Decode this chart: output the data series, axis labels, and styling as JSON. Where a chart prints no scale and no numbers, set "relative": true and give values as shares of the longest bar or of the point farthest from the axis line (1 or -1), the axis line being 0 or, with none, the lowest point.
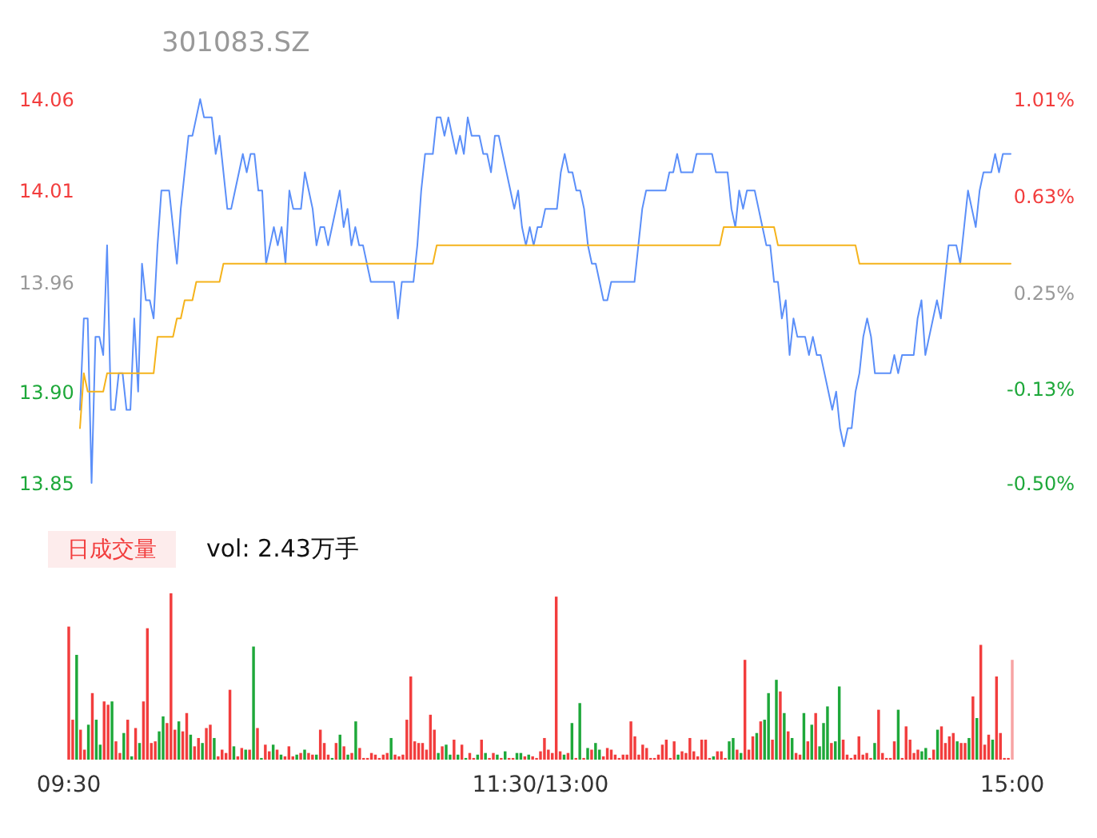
{
  "chart_data": [
    {
      "type": "line",
      "title": "301083.SZ",
      "ylim": [
        13.85,
        14.06
      ],
      "yticks": [
        13.85,
        {
          "value": 13.9,
          "label": "13.90"
        },
        13.96,
        14.01,
        14.06
      ],
      "y2lim": [
        -0.5,
        1.01
      ],
      "y2ticks": [
        {
          "value": -0.5,
          "label": "-0.50%"
        },
        {
          "value": -0.13,
          "label": "-0.13%"
        },
        {
          "value": 0.25,
          "label": "0.25%"
        },
        {
          "value": 0.63,
          "label": "0.63%"
        },
        {
          "value": 1.01,
          "label": "1.01%"
        }
      ],
      "tick_labels": "y",
      "marker": "none",
      "line_style": "solid",
      "categories": [
        null,
        null,
        null,
        null,
        null,
        null,
        null,
        null,
        null,
        null,
        null,
        null,
        null,
        null,
        null,
        null,
        null,
        null,
        null,
        null,
        null,
        null,
        null,
        null,
        null,
        null,
        null,
        null,
        null,
        null,
        null,
        null,
        null,
        null,
        null,
        null,
        null,
        null,
        null,
        null,
        null,
        null,
        null,
        null,
        null,
        null,
        null,
        null,
        null,
        null,
        null,
        null,
        null,
        null,
        null,
        null,
        null,
        null,
        null,
        null,
        null,
        null,
        null,
        null,
        null,
        null,
        null,
        null,
        null,
        null,
        null,
        null,
        null,
        null,
        null,
        null,
        null,
        null,
        null,
        null,
        null,
        null,
        null,
        null,
        null,
        null,
        null,
        null,
        null,
        null,
        null,
        null,
        null,
        null,
        null,
        null,
        null,
        null,
        null,
        null,
        null,
        null,
        null,
        null,
        null,
        null,
        null,
        null,
        null,
        null,
        null,
        null,
        null,
        null,
        null,
        null,
        null,
        null,
        null,
        null,
        null,
        null,
        null,
        null,
        null,
        null,
        null,
        null,
        null,
        null,
        null,
        null,
        null,
        null,
        null,
        null,
        null,
        null,
        null,
        null,
        null,
        null,
        null,
        null,
        null,
        null,
        null,
        null,
        null,
        null,
        null,
        null,
        null,
        null,
        null,
        null,
        null,
        null,
        null,
        null,
        null,
        null,
        null,
        null,
        null,
        null,
        null,
        null,
        null,
        null,
        null,
        null,
        null,
        null,
        null,
        null,
        null,
        null,
        null,
        null,
        null,
        null,
        null,
        null,
        null,
        null,
        null,
        null,
        null,
        null,
        null,
        null,
        null,
        null,
        null,
        null,
        null,
        null,
        null,
        null,
        null,
        null,
        null,
        null,
        null,
        null,
        null,
        null,
        null,
        null,
        null,
        null,
        null,
        null,
        null,
        null,
        null,
        null,
        null,
        null,
        null,
        null,
        null,
        null,
        null,
        null,
        null,
        null,
        null,
        null,
        null,
        null,
        null,
        null,
        null,
        null,
        null,
        null,
        null,
        null,
        null
      ],
      "series": [
        {
          "type": "line",
          "color": "#5b8ff9",
          "values": [
            13.89,
            13.94,
            13.94,
            13.85,
            13.93,
            13.93,
            13.92,
            13.98,
            13.89,
            13.89,
            13.91,
            13.91,
            13.89,
            13.89,
            13.94,
            13.9,
            13.97,
            13.95,
            13.95,
            13.94,
            13.98,
            14.01,
            14.01,
            14.01,
            13.99,
            13.97,
            14.0,
            14.02,
            14.04,
            14.04,
            14.05,
            14.06,
            14.05,
            14.05,
            14.05,
            14.03,
            14.04,
            14.02,
            14.0,
            14.0,
            14.01,
            14.02,
            14.03,
            14.02,
            14.03,
            14.03,
            14.01,
            14.01,
            13.97,
            13.98,
            13.99,
            13.98,
            13.99,
            13.97,
            14.01,
            14.0,
            14.0,
            14.0,
            14.02,
            14.01,
            14.0,
            13.98,
            13.99,
            13.99,
            13.98,
            13.99,
            14.0,
            14.01,
            13.99,
            14.0,
            13.98,
            13.99,
            13.98,
            13.98,
            13.97,
            13.96,
            13.96,
            13.96,
            13.96,
            13.96,
            13.96,
            13.96,
            13.94,
            13.96,
            13.96,
            13.96,
            13.96,
            13.98,
            14.01,
            14.03,
            14.03,
            14.03,
            14.05,
            14.05,
            14.04,
            14.05,
            14.04,
            14.03,
            14.04,
            14.03,
            14.05,
            14.04,
            14.04,
            14.04,
            14.03,
            14.03,
            14.02,
            14.04,
            14.04,
            14.03,
            14.02,
            14.01,
            14.0,
            14.01,
            13.99,
            13.98,
            13.99,
            13.98,
            13.99,
            13.99,
            14.0,
            14.0,
            14.0,
            14.0,
            14.02,
            14.03,
            14.02,
            14.02,
            14.01,
            14.01,
            14.0,
            13.98,
            13.97,
            13.97,
            13.96,
            13.95,
            13.95,
            13.96,
            13.96,
            13.96,
            13.96,
            13.96,
            13.96,
            13.96,
            13.98,
            14.0,
            14.01,
            14.01,
            14.01,
            14.01,
            14.01,
            14.01,
            14.02,
            14.02,
            14.03,
            14.02,
            14.02,
            14.02,
            14.02,
            14.03,
            14.03,
            14.03,
            14.03,
            14.03,
            14.02,
            14.02,
            14.02,
            14.02,
            14.0,
            13.99,
            14.01,
            14.0,
            14.01,
            14.01,
            14.01,
            14.0,
            13.99,
            13.98,
            13.98,
            13.96,
            13.96,
            13.94,
            13.95,
            13.92,
            13.94,
            13.93,
            13.93,
            13.93,
            13.92,
            13.93,
            13.92,
            13.92,
            13.91,
            13.9,
            13.89,
            13.9,
            13.88,
            13.87,
            13.88,
            13.88,
            13.9,
            13.91,
            13.93,
            13.94,
            13.93,
            13.91,
            13.91,
            13.91,
            13.91,
            13.91,
            13.92,
            13.91,
            13.92,
            13.92,
            13.92,
            13.92,
            13.94,
            13.95,
            13.92,
            13.93,
            13.94,
            13.95,
            13.94,
            13.96,
            13.98,
            13.98,
            13.98,
            13.97,
            13.99,
            14.01,
            14.0,
            13.99,
            14.01,
            14.02,
            14.02,
            14.02,
            14.03,
            14.02,
            14.03,
            14.03,
            14.03
          ]
        },
        {
          "type": "line",
          "color": "#f5b31b",
          "values": [
            13.88,
            13.91,
            13.9,
            13.9,
            13.9,
            13.9,
            13.9,
            13.91,
            13.91,
            13.91,
            13.91,
            13.91,
            13.91,
            13.91,
            13.91,
            13.91,
            13.91,
            13.91,
            13.91,
            13.91,
            13.93,
            13.93,
            13.93,
            13.93,
            13.93,
            13.94,
            13.94,
            13.95,
            13.95,
            13.95,
            13.96,
            13.96,
            13.96,
            13.96,
            13.96,
            13.96,
            13.96,
            13.97,
            13.97,
            13.97,
            13.97,
            13.97,
            13.97,
            13.97,
            13.97,
            13.97,
            13.97,
            13.97,
            13.97,
            13.97,
            13.97,
            13.97,
            13.97,
            13.97,
            13.97,
            13.97,
            13.97,
            13.97,
            13.97,
            13.97,
            13.97,
            13.97,
            13.97,
            13.97,
            13.97,
            13.97,
            13.97,
            13.97,
            13.97,
            13.97,
            13.97,
            13.97,
            13.97,
            13.97,
            13.97,
            13.97,
            13.97,
            13.97,
            13.97,
            13.97,
            13.97,
            13.97,
            13.97,
            13.97,
            13.97,
            13.97,
            13.97,
            13.97,
            13.97,
            13.97,
            13.97,
            13.97,
            13.98,
            13.98,
            13.98,
            13.98,
            13.98,
            13.98,
            13.98,
            13.98,
            13.98,
            13.98,
            13.98,
            13.98,
            13.98,
            13.98,
            13.98,
            13.98,
            13.98,
            13.98,
            13.98,
            13.98,
            13.98,
            13.98,
            13.98,
            13.98,
            13.98,
            13.98,
            13.98,
            13.98,
            13.98,
            13.98,
            13.98,
            13.98,
            13.98,
            13.98,
            13.98,
            13.98,
            13.98,
            13.98,
            13.98,
            13.98,
            13.98,
            13.98,
            13.98,
            13.98,
            13.98,
            13.98,
            13.98,
            13.98,
            13.98,
            13.98,
            13.98,
            13.98,
            13.98,
            13.98,
            13.98,
            13.98,
            13.98,
            13.98,
            13.98,
            13.98,
            13.98,
            13.98,
            13.98,
            13.98,
            13.98,
            13.98,
            13.98,
            13.98,
            13.98,
            13.98,
            13.98,
            13.98,
            13.98,
            13.98,
            13.99,
            13.99,
            13.99,
            13.99,
            13.99,
            13.99,
            13.99,
            13.99,
            13.99,
            13.99,
            13.99,
            13.99,
            13.99,
            13.99,
            13.98,
            13.98,
            13.98,
            13.98,
            13.98,
            13.98,
            13.98,
            13.98,
            13.98,
            13.98,
            13.98,
            13.98,
            13.98,
            13.98,
            13.98,
            13.98,
            13.98,
            13.98,
            13.98,
            13.98,
            13.98,
            13.97,
            13.97,
            13.97,
            13.97,
            13.97,
            13.97,
            13.97,
            13.97,
            13.97,
            13.97,
            13.97,
            13.97,
            13.97,
            13.97,
            13.97,
            13.97,
            13.97,
            13.97,
            13.97,
            13.97,
            13.97,
            13.97,
            13.97,
            13.97,
            13.97,
            13.97,
            13.97,
            13.97,
            13.97,
            13.97,
            13.97,
            13.97,
            13.97,
            13.97,
            13.97,
            13.97,
            13.97,
            13.97,
            13.97,
            13.97
          ]
        }
      ]
    },
    {
      "type": "bar",
      "title": "日成交量",
      "subtitle": "vol: 2.43万手",
      "relative": true,
      "tick_labels": "x",
      "categories": [
        "09:30",
        null,
        null,
        null,
        null,
        null,
        null,
        null,
        null,
        null,
        null,
        null,
        null,
        null,
        null,
        null,
        null,
        null,
        null,
        null,
        null,
        null,
        null,
        null,
        null,
        null,
        null,
        null,
        null,
        null,
        null,
        null,
        null,
        null,
        null,
        null,
        null,
        null,
        null,
        null,
        null,
        null,
        null,
        null,
        null,
        null,
        null,
        null,
        null,
        null,
        null,
        null,
        null,
        null,
        null,
        null,
        null,
        null,
        null,
        null,
        null,
        null,
        null,
        null,
        null,
        null,
        null,
        null,
        null,
        null,
        null,
        null,
        null,
        null,
        null,
        null,
        null,
        null,
        null,
        null,
        null,
        null,
        null,
        null,
        null,
        null,
        null,
        null,
        null,
        null,
        null,
        null,
        null,
        null,
        null,
        null,
        null,
        null,
        null,
        null,
        null,
        null,
        null,
        null,
        null,
        null,
        null,
        null,
        null,
        null,
        null,
        null,
        null,
        null,
        null,
        null,
        null,
        null,
        null,
        null,
        "11:30/13:00",
        null,
        null,
        null,
        null,
        null,
        null,
        null,
        null,
        null,
        null,
        null,
        null,
        null,
        null,
        null,
        null,
        null,
        null,
        null,
        null,
        null,
        null,
        null,
        null,
        null,
        null,
        null,
        null,
        null,
        null,
        null,
        null,
        null,
        null,
        null,
        null,
        null,
        null,
        null,
        null,
        null,
        null,
        null,
        null,
        null,
        null,
        null,
        null,
        null,
        null,
        null,
        null,
        null,
        null,
        null,
        null,
        null,
        null,
        null,
        null,
        null,
        null,
        null,
        null,
        null,
        null,
        null,
        null,
        null,
        null,
        null,
        null,
        null,
        null,
        null,
        null,
        null,
        null,
        null,
        null,
        null,
        null,
        null,
        null,
        null,
        null,
        null,
        null,
        null,
        null,
        null,
        null,
        null,
        null,
        null,
        null,
        null,
        null,
        null,
        null,
        null,
        null,
        null,
        null,
        null,
        null,
        null,
        null,
        null,
        null,
        null,
        null,
        null,
        null,
        null,
        null,
        null,
        null,
        null,
        "15:00"
      ],
      "values": [
        0.8,
        0.24,
        0.63,
        0.18,
        0.06,
        0.21,
        0.4,
        0.24,
        0.09,
        0.35,
        0.33,
        0.35,
        0.11,
        0.04,
        0.16,
        0.24,
        0.02,
        0.19,
        0.1,
        0.35,
        0.79,
        0.1,
        0.11,
        0.17,
        0.26,
        0.22,
        1,
        0.18,
        0.23,
        0.17,
        0.28,
        0.15,
        0.08,
        0.13,
        0.1,
        0.19,
        0.21,
        0.13,
        0.02,
        0.06,
        0.04,
        0.42,
        0.08,
        0.02,
        0.07,
        0.06,
        0.06,
        0.68,
        0.19,
        0.01,
        0.09,
        0.05,
        0.09,
        0.06,
        0.03,
        0.02,
        0.08,
        0.02,
        0.03,
        0.04,
        0.06,
        0.04,
        0.03,
        0.03,
        0.18,
        0.1,
        0.03,
        0.01,
        0.1,
        0.15,
        0.08,
        0.03,
        0.04,
        0.23,
        0.07,
        0.01,
        0.01,
        0.04,
        0.03,
        0.01,
        0.03,
        0.04,
        0.13,
        0.03,
        0.02,
        0.03,
        0.24,
        0.5,
        0.11,
        0.1,
        0.1,
        0.06,
        0.27,
        0.18,
        0.04,
        0.08,
        0.09,
        0.03,
        0.12,
        0.03,
        0.09,
        0.01,
        0.04,
        0.01,
        0.03,
        0.12,
        0.04,
        0.01,
        0.04,
        0.03,
        0.01,
        0.05,
        0.01,
        0.01,
        0.04,
        0.04,
        0.02,
        0.03,
        0.02,
        0.01,
        0.05,
        0.13,
        0.06,
        0.04,
        0.98,
        0.05,
        0.03,
        0.04,
        0.22,
        0.01,
        0.34,
        0.01,
        0.07,
        0.06,
        0.1,
        0.06,
        0.02,
        0.07,
        0.06,
        0.03,
        0.01,
        0.03,
        0.03,
        0.23,
        0.14,
        0.03,
        0.09,
        0.07,
        0.01,
        0.01,
        0.03,
        0.09,
        0.12,
        0.01,
        0.11,
        0.03,
        0.05,
        0.04,
        0.13,
        0.05,
        0.02,
        0.12,
        0.12,
        0.01,
        0.02,
        0.05,
        0.05,
        0.01,
        0.11,
        0.13,
        0.06,
        0.04,
        0.6,
        0.06,
        0.14,
        0.16,
        0.23,
        0.24,
        0.4,
        0.12,
        0.48,
        0.41,
        0.28,
        0.17,
        0.13,
        0.04,
        0.03,
        0.28,
        0.11,
        0.21,
        0.28,
        0.08,
        0.22,
        0.32,
        0.1,
        0.11,
        0.44,
        0.12,
        0.03,
        0.01,
        0.03,
        0.14,
        0.03,
        0.04,
        0.01,
        0.1,
        0.3,
        0.04,
        0.01,
        0.01,
        0.11,
        0.3,
        0.01,
        0.2,
        0.12,
        0.04,
        0.06,
        0.05,
        0.07,
        0.01,
        0.06,
        0.18,
        0.2,
        0.1,
        0.14,
        0.16,
        0.11,
        0.1,
        0.1,
        0.13,
        0.38,
        0.25,
        0.69,
        0.09,
        0.15,
        0.12,
        0.5,
        0.16,
        0.01,
        0.01,
        0.6
      ],
      "colors": [
        "#f23d3d",
        "#f23d3d",
        "#1ea83a",
        "#f23d3d",
        "#f23d3d",
        "#1ea83a",
        "#f23d3d",
        "#1ea83a",
        "#1ea83a",
        "#f23d3d",
        "#f23d3d",
        "#1ea83a",
        "#f23d3d",
        "#f23d3d",
        "#1ea83a",
        "#f23d3d",
        "#1ea83a",
        "#f23d3d",
        "#1ea83a",
        "#f23d3d",
        "#f23d3d",
        "#f23d3d",
        "#f23d3d",
        "#1ea83a",
        "#1ea83a",
        "#f23d3d",
        "#f23d3d",
        "#f23d3d",
        "#1ea83a",
        "#f23d3d",
        "#f23d3d",
        "#1ea83a",
        "#f23d3d",
        "#f23d3d",
        "#1ea83a",
        "#f23d3d",
        "#f23d3d",
        "#1ea83a",
        "#f23d3d",
        "#f23d3d",
        "#f23d3d",
        "#f23d3d",
        "#1ea83a",
        "#f23d3d",
        "#f23d3d",
        "#1ea83a",
        "#f23d3d",
        "#1ea83a",
        "#f23d3d",
        "#1ea83a",
        "#f23d3d",
        "#f23d3d",
        "#1ea83a",
        "#f23d3d",
        "#1ea83a",
        "#f23d3d",
        "#f23d3d",
        "#f23d3d",
        "#1ea83a",
        "#f23d3d",
        "#1ea83a",
        "#f23d3d",
        "#f23d3d",
        "#1ea83a",
        "#f23d3d",
        "#f23d3d",
        "#f23d3d",
        "#1ea83a",
        "#f23d3d",
        "#1ea83a",
        "#f23d3d",
        "#1ea83a",
        "#f23d3d",
        "#1ea83a",
        "#f23d3d",
        "#f23d3d",
        "#f23d3d",
        "#f23d3d",
        "#f23d3d",
        "#f23d3d",
        "#f23d3d",
        "#f23d3d",
        "#1ea83a",
        "#f23d3d",
        "#f23d3d",
        "#f23d3d",
        "#f23d3d",
        "#f23d3d",
        "#f23d3d",
        "#f23d3d",
        "#f23d3d",
        "#f23d3d",
        "#f23d3d",
        "#f23d3d",
        "#1ea83a",
        "#f23d3d",
        "#1ea83a",
        "#1ea83a",
        "#f23d3d",
        "#1ea83a",
        "#f23d3d",
        "#1ea83a",
        "#f23d3d",
        "#f23d3d",
        "#1ea83a",
        "#f23d3d",
        "#1ea83a",
        "#f23d3d",
        "#f23d3d",
        "#1ea83a",
        "#f23d3d",
        "#1ea83a",
        "#f23d3d",
        "#f23d3d",
        "#1ea83a",
        "#1ea83a",
        "#f23d3d",
        "#1ea83a",
        "#f23d3d",
        "#f23d3d",
        "#f23d3d",
        "#f23d3d",
        "#f23d3d",
        "#f23d3d",
        "#f23d3d",
        "#f23d3d",
        "#1ea83a",
        "#f23d3d",
        "#1ea83a",
        "#f23d3d",
        "#1ea83a",
        "#f23d3d",
        "#1ea83a",
        "#f23d3d",
        "#1ea83a",
        "#1ea83a",
        "#f23d3d",
        "#f23d3d",
        "#f23d3d",
        "#f23d3d",
        "#f23d3d",
        "#f23d3d",
        "#f23d3d",
        "#f23d3d",
        "#f23d3d",
        "#f23d3d",
        "#f23d3d",
        "#f23d3d",
        "#f23d3d",
        "#f23d3d",
        "#f23d3d",
        "#f23d3d",
        "#f23d3d",
        "#f23d3d",
        "#f23d3d",
        "#1ea83a",
        "#f23d3d",
        "#f23d3d",
        "#f23d3d",
        "#f23d3d",
        "#f23d3d",
        "#f23d3d",
        "#f23d3d",
        "#f23d3d",
        "#1ea83a",
        "#f23d3d",
        "#f23d3d",
        "#f23d3d",
        "#1ea83a",
        "#1ea83a",
        "#f23d3d",
        "#1ea83a",
        "#f23d3d",
        "#f23d3d",
        "#f23d3d",
        "#1ea83a",
        "#f23d3d",
        "#1ea83a",
        "#1ea83a",
        "#f23d3d",
        "#1ea83a",
        "#f23d3d",
        "#1ea83a",
        "#f23d3d",
        "#1ea83a",
        "#f23d3d",
        "#f23d3d",
        "#1ea83a",
        "#f23d3d",
        "#1ea83a",
        "#f23d3d",
        "#1ea83a",
        "#1ea83a",
        "#1ea83a",
        "#f23d3d",
        "#1ea83a",
        "#1ea83a",
        "#f23d3d",
        "#f23d3d",
        "#f23d3d",
        "#f23d3d",
        "#f23d3d",
        "#f23d3d",
        "#f23d3d",
        "#f23d3d",
        "#1ea83a",
        "#f23d3d",
        "#f23d3d",
        "#f23d3d",
        "#f23d3d",
        "#f23d3d",
        "#1ea83a",
        "#f23d3d",
        "#f23d3d",
        "#f23d3d",
        "#f23d3d",
        "#f23d3d",
        "#1ea83a",
        "#1ea83a",
        "#f23d3d",
        "#f23d3d",
        "#1ea83a",
        "#f23d3d",
        "#f23d3d",
        "#f23d3d",
        "#f23d3d",
        "#1ea83a",
        "#f23d3d",
        "#f23d3d",
        "#1ea83a",
        "#f23d3d",
        "#1ea83a",
        "#f23d3d",
        "#f23d3d",
        "#f23d3d",
        "#1ea83a",
        "#f23d3d",
        "#f23d3d",
        "#f23d3d",
        "#f23d3d",
        "#f7a3a3"
      ]
    }
  ]
}
